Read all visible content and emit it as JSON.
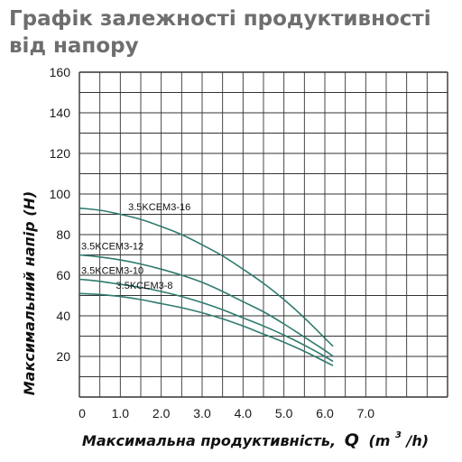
{
  "chart_data": {
    "type": "line",
    "title": "Графік залежності продуктивності від напору",
    "xlabel": "Максимальна продуктивність, Q (m³/h)",
    "xlabel_parts": {
      "text": "Максимальна продуктивність,",
      "q": "Q",
      "unit_open": "(m",
      "unit_sup": "3",
      "unit_close": "/h)"
    },
    "ylabel": "Максимальний напір (Н)",
    "xlim": [
      0,
      9
    ],
    "ylim": [
      0,
      160
    ],
    "x_ticks": [
      0,
      1.0,
      2.0,
      3.0,
      4.0,
      5.0,
      6.0,
      7.0
    ],
    "x_tick_labels": [
      "0",
      "1.0",
      "2.0",
      "3.0",
      "4.0",
      "5.0",
      "6.0",
      "7.0"
    ],
    "y_ticks": [
      20,
      40,
      60,
      80,
      100,
      120,
      140,
      160
    ],
    "y_tick_labels": [
      "20",
      "40",
      "60",
      "80",
      "100",
      "120",
      "140",
      "160"
    ],
    "grid": true,
    "curve_color": "#2f7a6e",
    "grid_color": "#333333",
    "series": [
      {
        "name": "3.5KCEM3-16",
        "x": [
          0,
          0.5,
          1.0,
          1.5,
          2.0,
          2.5,
          3.0,
          3.5,
          4.0,
          4.5,
          5.0,
          5.5,
          6.0,
          6.2
        ],
        "y": [
          93,
          92,
          90,
          87.5,
          84,
          80,
          75,
          69.5,
          63,
          56,
          48,
          39,
          29,
          25
        ]
      },
      {
        "name": "3.5KCEM3-12",
        "x": [
          0,
          0.5,
          1.0,
          1.5,
          2.0,
          2.5,
          3.0,
          3.5,
          4.0,
          4.5,
          5.0,
          5.5,
          6.0,
          6.2
        ],
        "y": [
          70,
          69,
          67.5,
          65.5,
          63,
          60,
          56.5,
          52,
          47,
          42,
          36,
          29.5,
          23,
          20
        ]
      },
      {
        "name": "3.5KCEM3-10",
        "x": [
          0,
          0.5,
          1.0,
          1.5,
          2.0,
          2.5,
          3.0,
          3.5,
          4.0,
          4.5,
          5.0,
          5.5,
          6.0,
          6.2
        ],
        "y": [
          58,
          57,
          55.5,
          54,
          52,
          49.5,
          46.5,
          43,
          39,
          35,
          30.5,
          25.5,
          20,
          17.5
        ]
      },
      {
        "name": "3.5KCEM3-8",
        "x": [
          0,
          0.5,
          1.0,
          1.5,
          2.0,
          2.5,
          3.0,
          3.5,
          4.0,
          4.5,
          5.0,
          5.5,
          6.0,
          6.2
        ],
        "y": [
          51,
          50.5,
          49.5,
          48,
          46,
          44,
          41.5,
          38.5,
          35,
          31,
          27,
          22.5,
          17.5,
          15.5
        ]
      }
    ]
  }
}
